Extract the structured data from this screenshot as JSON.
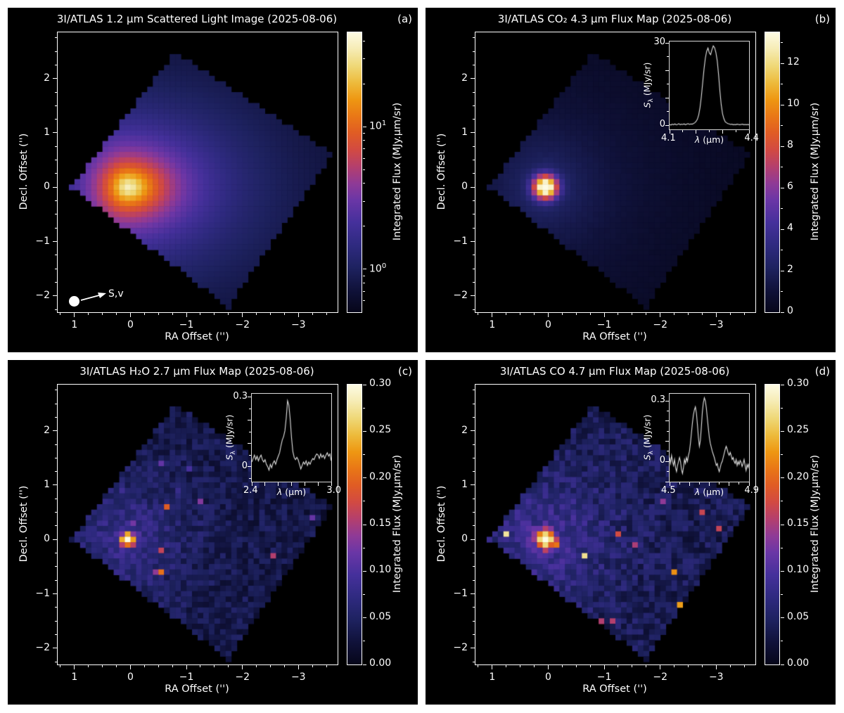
{
  "figure": {
    "background": "#ffffff",
    "panel_background": "#000000",
    "foreground": "#ffffff"
  },
  "colormap": [
    [
      0.0,
      "#06061a"
    ],
    [
      0.08,
      "#10123a"
    ],
    [
      0.16,
      "#1e2260"
    ],
    [
      0.24,
      "#2f2a80"
    ],
    [
      0.32,
      "#45309b"
    ],
    [
      0.4,
      "#6a36a6"
    ],
    [
      0.46,
      "#8f3a96"
    ],
    [
      0.52,
      "#b43f6d"
    ],
    [
      0.58,
      "#d24a42"
    ],
    [
      0.64,
      "#e05c24"
    ],
    [
      0.7,
      "#e97716"
    ],
    [
      0.76,
      "#ee9712"
    ],
    [
      0.82,
      "#edbb3c"
    ],
    [
      0.88,
      "#efd877"
    ],
    [
      0.94,
      "#f6ecb4"
    ],
    [
      1.0,
      "#fdfbe4"
    ]
  ],
  "chart_data": [
    {
      "id": "a",
      "type": "heatmap",
      "letter": "(a)",
      "title": "3I/ATLAS 1.2 μm Scattered Light Image (2025-08-06)",
      "xlabel": "RA Offset ('')",
      "ylabel": "Decl. Offset ('')",
      "xlim": [
        1.3,
        -3.7
      ],
      "ylim": [
        -2.3,
        2.85
      ],
      "xticks": [
        {
          "v": 1,
          "label": "1"
        },
        {
          "v": 0,
          "label": "0"
        },
        {
          "v": -1,
          "label": "−1"
        },
        {
          "v": -2,
          "label": "−2"
        },
        {
          "v": -3,
          "label": "−3"
        }
      ],
      "yticks": [
        {
          "v": 2,
          "label": "2"
        },
        {
          "v": 1,
          "label": "1"
        },
        {
          "v": 0,
          "label": "0"
        },
        {
          "v": -1,
          "label": "−1"
        },
        {
          "v": -2,
          "label": "−2"
        }
      ],
      "footprint": [
        [
          1.05,
          0.0
        ],
        [
          -0.8,
          2.5
        ],
        [
          -3.6,
          0.6
        ],
        [
          -1.75,
          -2.2
        ]
      ],
      "map": {
        "kind": "smooth_log",
        "peak": 36,
        "floor": 0.52,
        "r0": 0.2,
        "alpha": 1.9,
        "vmin": 0.5,
        "vmax": 46,
        "seed": 3
      },
      "colorbar": {
        "label": "Integrated Flux (MJy.μm/sr)",
        "scale": "log",
        "vmin": 0.5,
        "vmax": 46,
        "ticks": [
          {
            "v": 10,
            "base": "10",
            "exp": "1"
          },
          {
            "v": 1,
            "base": "10",
            "exp": "0"
          }
        ],
        "minor": [
          0.6,
          0.7,
          0.8,
          0.9,
          2,
          3,
          4,
          5,
          6,
          7,
          8,
          9,
          20,
          30,
          40
        ]
      },
      "marker": {
        "label": "S,v"
      }
    },
    {
      "id": "b",
      "type": "heatmap",
      "letter": "(b)",
      "title": "3I/ATLAS CO₂ 4.3 μm Flux Map (2025-08-06)",
      "xlabel": "RA Offset ('')",
      "ylabel": "Decl. Offset ('')",
      "xlim": [
        1.3,
        -3.7
      ],
      "ylim": [
        -2.3,
        2.85
      ],
      "xticks": [
        {
          "v": 1,
          "label": "1"
        },
        {
          "v": 0,
          "label": "0"
        },
        {
          "v": -1,
          "label": "−1"
        },
        {
          "v": -2,
          "label": "−2"
        },
        {
          "v": -3,
          "label": "−3"
        }
      ],
      "yticks": [
        {
          "v": 2,
          "label": "2"
        },
        {
          "v": 1,
          "label": "1"
        },
        {
          "v": 0,
          "label": "0"
        },
        {
          "v": -1,
          "label": "−1"
        },
        {
          "v": -2,
          "label": "−2"
        }
      ],
      "footprint": [
        [
          1.05,
          0.0
        ],
        [
          -0.8,
          2.5
        ],
        [
          -3.6,
          0.6
        ],
        [
          -1.75,
          -2.2
        ]
      ],
      "map": {
        "kind": "smooth_linear",
        "core": 13.2,
        "sigma": 0.21,
        "coma": 2.6,
        "r0": 1.1,
        "alpha": 1.6,
        "noise": 0.12,
        "vmax": 13.5,
        "seed": 5
      },
      "colorbar": {
        "label": "Integrated Flux (MJy.μm/sr)",
        "scale": "linear",
        "vmin": 0,
        "vmax": 13.5,
        "ticks": [
          {
            "v": 0,
            "label": "0"
          },
          {
            "v": 2,
            "label": "2"
          },
          {
            "v": 4,
            "label": "4"
          },
          {
            "v": 6,
            "label": "6"
          },
          {
            "v": 8,
            "label": "8"
          },
          {
            "v": 10,
            "label": "10"
          },
          {
            "v": 12,
            "label": "12"
          }
        ],
        "minor": [
          1,
          3,
          5,
          7,
          9,
          11,
          13
        ]
      },
      "inset": {
        "type": "line",
        "ylabel": {
          "sym": "S",
          "sub": "λ",
          "rest": " (MJy/sr)"
        },
        "xlabel": {
          "sym": "λ",
          "rest": " (μm)"
        },
        "xmin": 4.1,
        "xmax": 4.4,
        "ylim": [
          -1.5,
          30.6
        ],
        "ytop": {
          "v": 30,
          "label": "30"
        },
        "yzero": {
          "v": 0,
          "label": "0"
        },
        "xleft": "4.1",
        "xright": "4.4",
        "ytick_step": 5,
        "xtick_step": 0.05,
        "x0": 4.1,
        "dx": 0.005,
        "y": [
          0.3,
          0.1,
          0.4,
          0.2,
          0.5,
          0.2,
          0.3,
          0.6,
          0.2,
          0.4,
          0.3,
          0.5,
          0.2,
          0.4,
          0.6,
          0.3,
          0.5,
          0.4,
          0.6,
          0.9,
          1.4,
          2.2,
          3.8,
          6.5,
          10.5,
          15.5,
          20.5,
          24.5,
          27.0,
          28.2,
          26.4,
          25.8,
          27.6,
          29.0,
          28.3,
          26.5,
          23.5,
          18.5,
          12.5,
          7.5,
          4.2,
          2.4,
          1.3,
          0.9,
          0.6,
          0.5,
          0.3,
          0.4,
          0.2,
          0.3,
          0.2,
          0.4,
          0.3,
          0.2,
          0.3,
          0.4,
          0.2,
          0.3,
          0.2,
          0.3,
          0.2
        ]
      }
    },
    {
      "id": "c",
      "type": "heatmap",
      "letter": "(c)",
      "title": "3I/ATLAS H₂O 2.7 μm Flux Map (2025-08-06)",
      "xlabel": "RA Offset ('')",
      "ylabel": "Decl. Offset ('')",
      "xlim": [
        1.3,
        -3.7
      ],
      "ylim": [
        -2.3,
        2.85
      ],
      "xticks": [
        {
          "v": 1,
          "label": "1"
        },
        {
          "v": 0,
          "label": "0"
        },
        {
          "v": -1,
          "label": "−1"
        },
        {
          "v": -2,
          "label": "−2"
        },
        {
          "v": -3,
          "label": "−3"
        }
      ],
      "yticks": [
        {
          "v": 2,
          "label": "2"
        },
        {
          "v": 1,
          "label": "1"
        },
        {
          "v": 0,
          "label": "0"
        },
        {
          "v": -1,
          "label": "−1"
        },
        {
          "v": -2,
          "label": "−2"
        }
      ],
      "footprint": [
        [
          1.05,
          0.0
        ],
        [
          -0.8,
          2.5
        ],
        [
          -3.6,
          0.6
        ],
        [
          -1.75,
          -2.2
        ]
      ],
      "map": {
        "kind": "noisy",
        "core": 0.3,
        "sigma": 0.115,
        "base": 0.008,
        "halo": 0.05,
        "r0": 0.95,
        "alpha": 2.2,
        "noise": 0.042,
        "spike_p": 0.008,
        "spike": 0.12,
        "vmax": 0.3,
        "seed": 7
      },
      "colorbar": {
        "label": "Integrated Flux (MJy.μm/sr)",
        "scale": "linear",
        "vmin": 0,
        "vmax": 0.3,
        "ticks": [
          {
            "v": 0,
            "label": "0.00"
          },
          {
            "v": 0.05,
            "label": "0.05"
          },
          {
            "v": 0.1,
            "label": "0.10"
          },
          {
            "v": 0.15,
            "label": "0.15"
          },
          {
            "v": 0.2,
            "label": "0.20"
          },
          {
            "v": 0.25,
            "label": "0.25"
          },
          {
            "v": 0.3,
            "label": "0.30"
          }
        ],
        "minor": [
          0.025,
          0.075,
          0.125,
          0.175,
          0.225,
          0.275
        ]
      },
      "inset": {
        "type": "line",
        "ylabel": {
          "sym": "S",
          "sub": "λ",
          "rest": " (MJy/sr)"
        },
        "xlabel": {
          "sym": "λ",
          "rest": " (μm)"
        },
        "xmin": 2.4,
        "xmax": 3.0,
        "ylim": [
          -0.065,
          0.315
        ],
        "ytop": {
          "v": 0.3,
          "label": "0.3"
        },
        "yzero": {
          "v": 0,
          "label": "0"
        },
        "xleft": "2.4",
        "xright": "3.0",
        "ytick_step": 0.05,
        "xtick_step": 0.1,
        "x0": 2.4,
        "dx": 0.01,
        "y": [
          0.02,
          0.035,
          0.05,
          0.03,
          0.045,
          0.025,
          0.04,
          0.05,
          0.03,
          0.02,
          0.03,
          0.01,
          0.0,
          -0.015,
          0.01,
          -0.005,
          0.015,
          0.025,
          0.01,
          0.03,
          0.045,
          0.06,
          0.09,
          0.115,
          0.13,
          0.155,
          0.21,
          0.285,
          0.265,
          0.205,
          0.125,
          0.065,
          0.04,
          0.03,
          0.04,
          0.03,
          0.01,
          -0.01,
          0.005,
          0.02,
          0.01,
          0.025,
          0.005,
          0.02,
          0.01,
          0.025,
          0.035,
          0.03,
          0.045,
          0.055,
          0.05,
          0.035,
          0.055,
          0.04,
          0.05,
          0.035,
          0.05,
          0.06,
          0.045,
          0.055,
          0.025
        ]
      }
    },
    {
      "id": "d",
      "type": "heatmap",
      "letter": "(d)",
      "title": "3I/ATLAS CO 4.7 μm Flux Map (2025-08-06)",
      "xlabel": "RA Offset ('')",
      "ylabel": "Decl. Offset ('')",
      "xlim": [
        1.3,
        -3.7
      ],
      "ylim": [
        -2.3,
        2.85
      ],
      "xticks": [
        {
          "v": 1,
          "label": "1"
        },
        {
          "v": 0,
          "label": "0"
        },
        {
          "v": -1,
          "label": "−1"
        },
        {
          "v": -2,
          "label": "−2"
        },
        {
          "v": -3,
          "label": "−3"
        }
      ],
      "yticks": [
        {
          "v": 2,
          "label": "2"
        },
        {
          "v": 1,
          "label": "1"
        },
        {
          "v": 0,
          "label": "0"
        },
        {
          "v": -1,
          "label": "−1"
        },
        {
          "v": -2,
          "label": "−2"
        }
      ],
      "footprint": [
        [
          1.05,
          0.0
        ],
        [
          -0.8,
          2.5
        ],
        [
          -3.6,
          0.6
        ],
        [
          -1.75,
          -2.2
        ]
      ],
      "map": {
        "kind": "noisy",
        "core": 0.3,
        "sigma": 0.15,
        "base": 0.01,
        "halo": 0.055,
        "r0": 1.05,
        "alpha": 2.2,
        "noise": 0.048,
        "spike_p": 0.014,
        "spike": 0.16,
        "vmax": 0.3,
        "seed": 11
      },
      "colorbar": {
        "label": "Integrated Flux (MJy.μm/sr)",
        "scale": "linear",
        "vmin": 0,
        "vmax": 0.3,
        "ticks": [
          {
            "v": 0,
            "label": "0.00"
          },
          {
            "v": 0.05,
            "label": "0.05"
          },
          {
            "v": 0.1,
            "label": "0.10"
          },
          {
            "v": 0.15,
            "label": "0.15"
          },
          {
            "v": 0.2,
            "label": "0.20"
          },
          {
            "v": 0.25,
            "label": "0.25"
          },
          {
            "v": 0.3,
            "label": "0.30"
          }
        ],
        "minor": [
          0.025,
          0.075,
          0.125,
          0.175,
          0.225,
          0.275
        ]
      },
      "inset": {
        "type": "line",
        "ylabel": {
          "sym": "S",
          "sub": "λ",
          "rest": " (MJy/sr)"
        },
        "xlabel": {
          "sym": "λ",
          "rest": " (μm)"
        },
        "xmin": 4.5,
        "xmax": 4.9,
        "ylim": [
          -0.1,
          0.335
        ],
        "ytop": {
          "v": 0.3,
          "label": "0.3"
        },
        "yzero": {
          "v": 0,
          "label": "0"
        },
        "xleft": "4.5",
        "xright": "4.9",
        "ytick_step": 0.05,
        "xtick_step": 0.05,
        "x0": 4.5,
        "dx": 0.005,
        "y": [
          0.02,
          -0.01,
          0.03,
          0.0,
          -0.02,
          0.01,
          -0.03,
          -0.05,
          -0.02,
          0.0,
          0.02,
          0.0,
          -0.04,
          -0.06,
          -0.03,
          0.01,
          -0.01,
          0.02,
          0.0,
          0.03,
          0.05,
          0.09,
          0.14,
          0.19,
          0.23,
          0.255,
          0.27,
          0.24,
          0.185,
          0.12,
          0.075,
          0.105,
          0.17,
          0.245,
          0.29,
          0.315,
          0.3,
          0.265,
          0.215,
          0.165,
          0.12,
          0.09,
          0.07,
          0.05,
          0.035,
          0.02,
          0.0,
          -0.02,
          -0.01,
          -0.035,
          -0.05,
          -0.03,
          -0.01,
          0.0,
          0.02,
          0.04,
          0.06,
          0.075,
          0.06,
          0.04,
          0.03,
          0.045,
          0.03,
          0.01,
          0.02,
          0.0,
          -0.01,
          0.01,
          -0.02,
          0.0,
          -0.015,
          0.005,
          -0.005,
          -0.025,
          -0.01,
          0.01,
          -0.02,
          -0.045,
          -0.015,
          -0.03,
          -0.01
        ]
      }
    }
  ]
}
